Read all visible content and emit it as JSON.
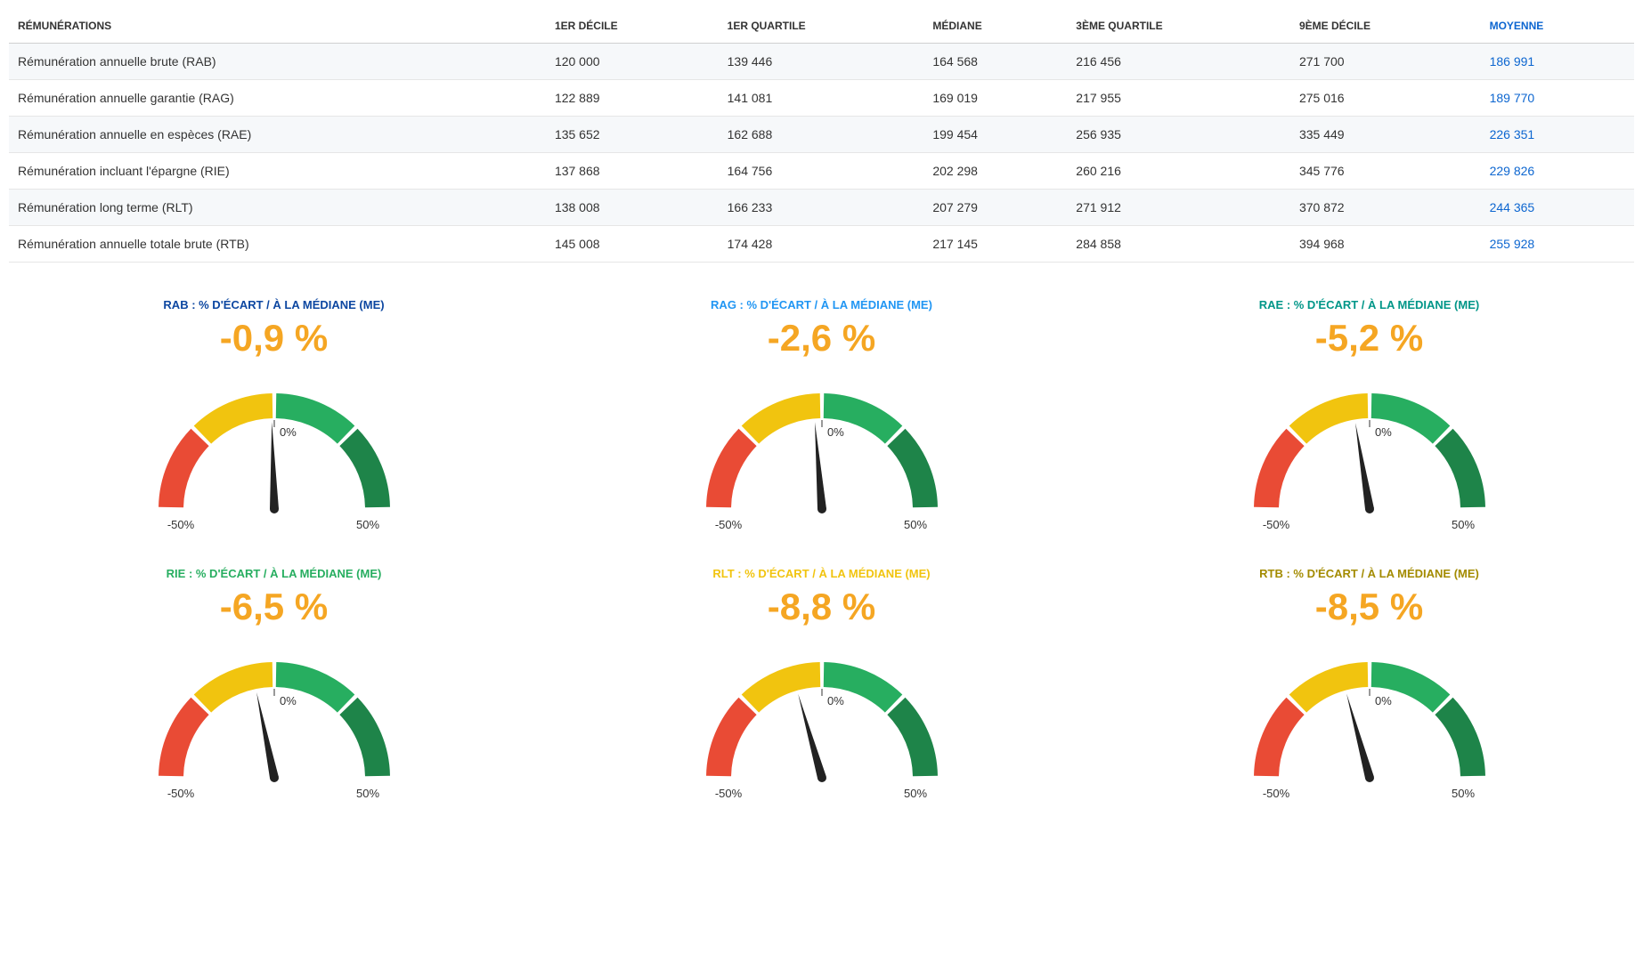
{
  "table": {
    "columns": [
      "RÉMUNÉRATIONS",
      "1ER DÉCILE",
      "1ER QUARTILE",
      "MÉDIANE",
      "3ÈME QUARTILE",
      "9ÈME DÉCILE",
      "MOYENNE"
    ],
    "rows": [
      {
        "label": "Rémunération annuelle brute (RAB)",
        "d1": "120 000",
        "q1": "139 446",
        "med": "164 568",
        "q3": "216 456",
        "d9": "271 700",
        "moy": "186 991"
      },
      {
        "label": "Rémunération annuelle garantie (RAG)",
        "d1": "122 889",
        "q1": "141 081",
        "med": "169 019",
        "q3": "217 955",
        "d9": "275 016",
        "moy": "189 770"
      },
      {
        "label": "Rémunération annuelle en espèces (RAE)",
        "d1": "135 652",
        "q1": "162 688",
        "med": "199 454",
        "q3": "256 935",
        "d9": "335 449",
        "moy": "226 351"
      },
      {
        "label": "Rémunération incluant l'épargne (RIE)",
        "d1": "137 868",
        "q1": "164 756",
        "med": "202 298",
        "q3": "260 216",
        "d9": "345 776",
        "moy": "229 826"
      },
      {
        "label": "Rémunération long terme (RLT)",
        "d1": "138 008",
        "q1": "166 233",
        "med": "207 279",
        "q3": "271 912",
        "d9": "370 872",
        "moy": "244 365"
      },
      {
        "label": "Rémunération annuelle totale brute (RTB)",
        "d1": "145 008",
        "q1": "174 428",
        "med": "217 145",
        "q3": "284 858",
        "d9": "394 968",
        "moy": "255 928"
      }
    ],
    "header_color_moyenne": "#0d66d0",
    "row_odd_bg": "#f6f8fa",
    "border_color": "#e6e6e6"
  },
  "gauges": {
    "type": "gauge",
    "range_min": -50,
    "range_max": 50,
    "tick_labels": {
      "left": "-50%",
      "center": "0%",
      "right": "50%"
    },
    "arc_thickness": 28,
    "arc_spacing": 2,
    "segments": [
      {
        "from": -50,
        "to": -25,
        "color": "#e94b35"
      },
      {
        "from": -25,
        "to": 0,
        "color": "#f1c40f"
      },
      {
        "from": 0,
        "to": 25,
        "color": "#27ae60"
      },
      {
        "from": 25,
        "to": 50,
        "color": "#1e8449"
      }
    ],
    "needle_color": "#222222",
    "value_color": "#f5a623",
    "value_fontsize": 42,
    "items": [
      {
        "key": "rab",
        "title": "RAB : % D'ÉCART / À LA MÉDIANE (ME)",
        "title_color": "#0d47a1",
        "value_pct": -0.9,
        "display": "-0,9 %"
      },
      {
        "key": "rag",
        "title": "RAG : % D'ÉCART / À LA MÉDIANE (ME)",
        "title_color": "#2196f3",
        "value_pct": -2.6,
        "display": "-2,6 %"
      },
      {
        "key": "rae",
        "title": "RAE : % D'ÉCART / À LA MÉDIANE (ME)",
        "title_color": "#009688",
        "value_pct": -5.2,
        "display": "-5,2 %"
      },
      {
        "key": "rie",
        "title": "RIE : % D'ÉCART / À LA MÉDIANE (ME)",
        "title_color": "#27ae60",
        "value_pct": -6.5,
        "display": "-6,5 %"
      },
      {
        "key": "rlt",
        "title": "RLT : % D'ÉCART / À LA MÉDIANE (ME)",
        "title_color": "#f1c40f",
        "value_pct": -8.8,
        "display": "-8,8 %"
      },
      {
        "key": "rtb",
        "title": "RTB : % D'ÉCART / À LA MÉDIANE (ME)",
        "title_color": "#a38b00",
        "value_pct": -8.5,
        "display": "-8,5 %"
      }
    ]
  }
}
